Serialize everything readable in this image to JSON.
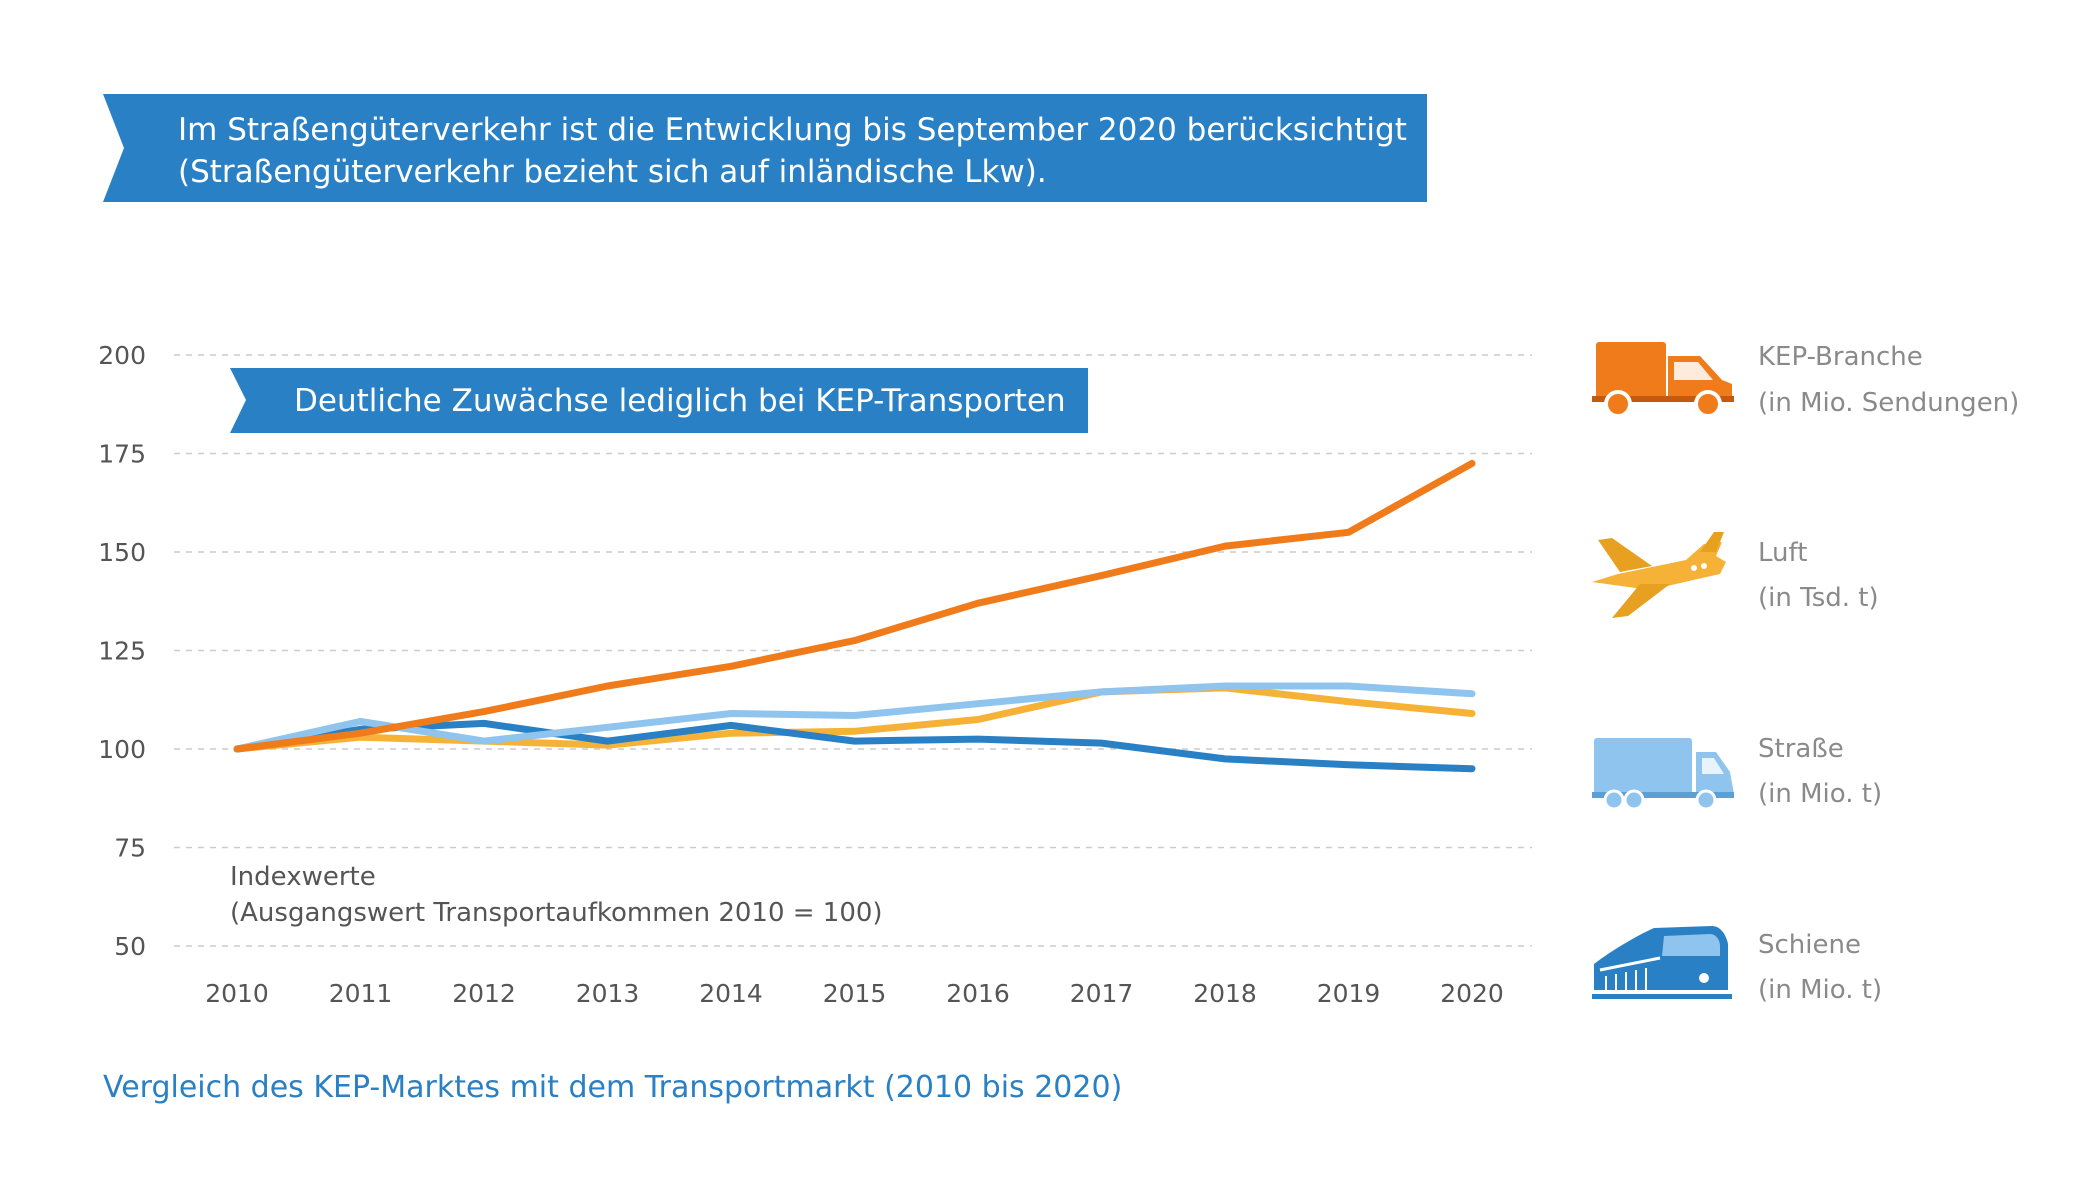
{
  "header": {
    "banner_line1": "Im Straßengüterverkehr ist die Entwicklung bis September 2020 berücksichtigt",
    "banner_line2": "(Straßengüterverkehr bezieht sich auf inländische Lkw).",
    "color": "#2a80c5"
  },
  "chart_data": {
    "type": "line",
    "title": "Deutliche Zuwächse lediglich bei KEP-Transporten",
    "x": [
      2010,
      2011,
      2012,
      2013,
      2014,
      2015,
      2016,
      2017,
      2018,
      2019,
      2020
    ],
    "x_tick_labels": [
      "2010",
      "2011",
      "2012",
      "2013",
      "2014",
      "2015",
      "2016",
      "2017",
      "2018",
      "2019",
      "2020"
    ],
    "ylim": [
      50,
      200
    ],
    "y_ticks": [
      50,
      75,
      100,
      125,
      150,
      175,
      200
    ],
    "y_tick_labels": [
      "50",
      "75",
      "100",
      "125",
      "150",
      "175",
      "200"
    ],
    "grid": true,
    "xlabel": "",
    "ylabel": "",
    "series": [
      {
        "name": "KEP-Branche",
        "unit": "(in Mio. Sendungen)",
        "color": "#f07b1a",
        "icon": "van-icon",
        "values": [
          100,
          104,
          109.5,
          116,
          121,
          127.5,
          137,
          144,
          151.5,
          155,
          172.5
        ]
      },
      {
        "name": "Luft",
        "unit": "(in Tsd. t)",
        "color": "#f6b236",
        "icon": "airplane-icon",
        "values": [
          100,
          103,
          102,
          101,
          104,
          104.5,
          107.5,
          114.5,
          115.5,
          112,
          109
        ]
      },
      {
        "name": "Straße",
        "unit": "(in Mio. t)",
        "color": "#8ec4ed",
        "icon": "truck-icon",
        "values": [
          100,
          107,
          102,
          105.5,
          109,
          108.5,
          111.5,
          114.5,
          116,
          116,
          114
        ]
      },
      {
        "name": "Schiene",
        "unit": "(in Mio. t)",
        "color": "#2a80c5",
        "icon": "train-icon",
        "values": [
          100,
          105,
          106.5,
          102,
          106,
          102,
          102.5,
          101.5,
          97.5,
          96,
          95
        ]
      }
    ],
    "note_line1": "Indexwerte",
    "note_line2": "(Ausgangswert Transportaufkommen 2010 = 100)"
  },
  "legend": {
    "items": [
      {
        "name": "KEP-Branche",
        "unit": "(in Mio. Sendungen)"
      },
      {
        "name": "Luft",
        "unit": "(in Tsd. t)"
      },
      {
        "name": "Straße",
        "unit": "(in Mio. t)"
      },
      {
        "name": "Schiene",
        "unit": "(in Mio. t)"
      }
    ]
  },
  "caption": "Vergleich des KEP-Marktes mit dem Transportmarkt (2010 bis 2020)"
}
